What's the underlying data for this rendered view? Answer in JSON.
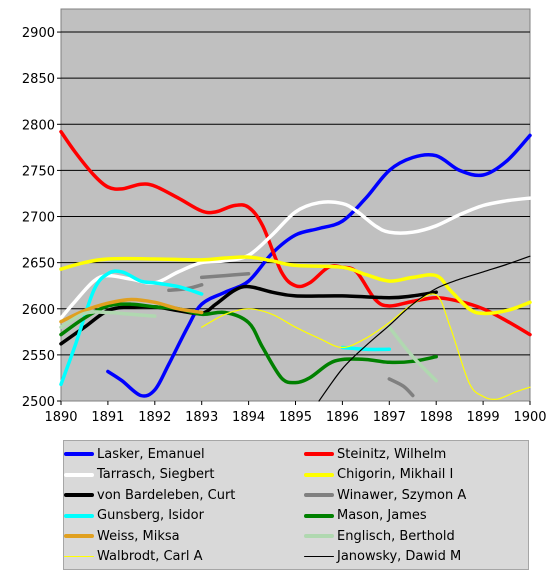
{
  "chart_data": {
    "type": "line",
    "title": "",
    "xlabel": "",
    "ylabel": "",
    "xlim": [
      1890,
      1900
    ],
    "ylim": [
      2500,
      2925
    ],
    "x_ticks": [
      "1890",
      "1891",
      "1892",
      "1893",
      "1894",
      "1895",
      "1896",
      "1897",
      "1898",
      "1899",
      "1900"
    ],
    "y_ticks": [
      "2500",
      "2550",
      "2600",
      "2650",
      "2700",
      "2750",
      "2800",
      "2850",
      "2900"
    ],
    "grid": true,
    "legend_position": "bottom",
    "series": [
      {
        "name": "Lasker, Emanuel",
        "color": "#0000ff",
        "width": 3.5,
        "points": [
          [
            1891,
            2532
          ],
          [
            1891.3,
            2522
          ],
          [
            1891.7,
            2506
          ],
          [
            1892,
            2512
          ],
          [
            1892.3,
            2540
          ],
          [
            1892.7,
            2580
          ],
          [
            1893,
            2605
          ],
          [
            1893.5,
            2618
          ],
          [
            1894,
            2630
          ],
          [
            1894.5,
            2660
          ],
          [
            1895,
            2680
          ],
          [
            1895.5,
            2687
          ],
          [
            1896,
            2695
          ],
          [
            1896.5,
            2720
          ],
          [
            1897,
            2750
          ],
          [
            1897.5,
            2764
          ],
          [
            1898,
            2766
          ],
          [
            1898.5,
            2750
          ],
          [
            1899,
            2745
          ],
          [
            1899.5,
            2760
          ],
          [
            1900,
            2788
          ]
        ]
      },
      {
        "name": "Steinitz, Wilhelm",
        "color": "#ff0000",
        "width": 3.5,
        "points": [
          [
            1890,
            2792
          ],
          [
            1890.3,
            2770
          ],
          [
            1890.7,
            2745
          ],
          [
            1891,
            2732
          ],
          [
            1891.3,
            2730
          ],
          [
            1891.7,
            2735
          ],
          [
            1892,
            2733
          ],
          [
            1892.5,
            2720
          ],
          [
            1893,
            2706
          ],
          [
            1893.3,
            2705
          ],
          [
            1893.7,
            2712
          ],
          [
            1894,
            2710
          ],
          [
            1894.3,
            2690
          ],
          [
            1894.7,
            2640
          ],
          [
            1895,
            2625
          ],
          [
            1895.3,
            2628
          ],
          [
            1895.7,
            2645
          ],
          [
            1896,
            2645
          ],
          [
            1896.3,
            2640
          ],
          [
            1896.7,
            2610
          ],
          [
            1897,
            2603
          ],
          [
            1897.5,
            2608
          ],
          [
            1898,
            2612
          ],
          [
            1898.5,
            2608
          ],
          [
            1899,
            2600
          ],
          [
            1899.5,
            2587
          ],
          [
            1900,
            2572
          ]
        ]
      },
      {
        "name": "Tarrasch, Siegbert",
        "color": "#ffffff",
        "width": 3.5,
        "points": [
          [
            1890,
            2590
          ],
          [
            1890.3,
            2608
          ],
          [
            1890.7,
            2630
          ],
          [
            1891,
            2636
          ],
          [
            1891.5,
            2632
          ],
          [
            1892,
            2628
          ],
          [
            1892.5,
            2640
          ],
          [
            1893,
            2650
          ],
          [
            1893.5,
            2652
          ],
          [
            1894,
            2658
          ],
          [
            1894.5,
            2680
          ],
          [
            1895,
            2705
          ],
          [
            1895.5,
            2715
          ],
          [
            1896,
            2714
          ],
          [
            1896.3,
            2706
          ],
          [
            1896.7,
            2690
          ],
          [
            1897,
            2683
          ],
          [
            1897.5,
            2683
          ],
          [
            1898,
            2690
          ],
          [
            1898.5,
            2702
          ],
          [
            1899,
            2712
          ],
          [
            1899.5,
            2717
          ],
          [
            1900,
            2720
          ]
        ]
      },
      {
        "name": "Chigorin, Mikhail I",
        "color": "#ffff00",
        "width": 3.5,
        "points": [
          [
            1890,
            2643
          ],
          [
            1890.5,
            2650
          ],
          [
            1891,
            2654
          ],
          [
            1892,
            2654
          ],
          [
            1893,
            2653
          ],
          [
            1893.5,
            2655
          ],
          [
            1894,
            2656
          ],
          [
            1894.5,
            2652
          ],
          [
            1895,
            2647
          ],
          [
            1896,
            2645
          ],
          [
            1896.5,
            2637
          ],
          [
            1897,
            2630
          ],
          [
            1897.5,
            2634
          ],
          [
            1898,
            2636
          ],
          [
            1898.3,
            2620
          ],
          [
            1898.7,
            2600
          ],
          [
            1899,
            2595
          ],
          [
            1899.5,
            2598
          ],
          [
            1900,
            2607
          ]
        ]
      },
      {
        "name": "von Bardeleben, Curt",
        "color": "#000000",
        "width": 3.5,
        "points": [
          [
            1890,
            2562
          ],
          [
            1890.5,
            2580
          ],
          [
            1891,
            2598
          ],
          [
            1891.5,
            2602
          ],
          [
            1892,
            2602
          ],
          [
            1892.5,
            2598
          ],
          [
            1893,
            2595
          ],
          [
            1893.3,
            2605
          ],
          [
            1893.7,
            2620
          ],
          [
            1894,
            2624
          ],
          [
            1894.5,
            2618
          ],
          [
            1895,
            2614
          ],
          [
            1896,
            2614
          ],
          [
            1897,
            2612
          ],
          [
            1897.5,
            2614
          ],
          [
            1898,
            2618
          ]
        ]
      },
      {
        "name": "Winawer, Szymon A",
        "color": "#808080",
        "width": 3.5,
        "segments": [
          [
            [
              1892.3,
              2620
            ],
            [
              1892.7,
              2622
            ],
            [
              1893,
              2626
            ]
          ],
          [
            [
              1893,
              2634
            ],
            [
              1893.5,
              2636
            ],
            [
              1894,
              2638
            ]
          ],
          [
            [
              1897,
              2524
            ],
            [
              1897.3,
              2516
            ],
            [
              1897.5,
              2506
            ]
          ]
        ]
      },
      {
        "name": "Gunsberg, Isidor",
        "color": "#00ffff",
        "width": 3.5,
        "segments": [
          [
            [
              1890,
              2518
            ],
            [
              1890.3,
              2560
            ],
            [
              1890.7,
              2620
            ],
            [
              1891,
              2638
            ],
            [
              1891.3,
              2640
            ],
            [
              1891.7,
              2630
            ],
            [
              1892,
              2628
            ],
            [
              1892.5,
              2624
            ],
            [
              1893,
              2616
            ]
          ],
          [
            [
              1896,
              2558
            ],
            [
              1896.5,
              2556
            ],
            [
              1897,
              2556
            ]
          ]
        ]
      },
      {
        "name": "Mason, James",
        "color": "#008000",
        "width": 3.5,
        "points": [
          [
            1890,
            2572
          ],
          [
            1890.5,
            2590
          ],
          [
            1891,
            2603
          ],
          [
            1891.5,
            2605
          ],
          [
            1892,
            2602
          ],
          [
            1892.5,
            2600
          ],
          [
            1893,
            2594
          ],
          [
            1893.5,
            2596
          ],
          [
            1894,
            2585
          ],
          [
            1894.3,
            2558
          ],
          [
            1894.7,
            2525
          ],
          [
            1895,
            2520
          ],
          [
            1895.3,
            2525
          ],
          [
            1895.7,
            2540
          ],
          [
            1896,
            2545
          ],
          [
            1896.5,
            2545
          ],
          [
            1897,
            2542
          ],
          [
            1897.5,
            2543
          ],
          [
            1898,
            2548
          ]
        ]
      },
      {
        "name": "Weiss, Miksa",
        "color": "#e0a020",
        "width": 3.5,
        "points": [
          [
            1890,
            2586
          ],
          [
            1890.5,
            2598
          ],
          [
            1891,
            2606
          ],
          [
            1891.5,
            2610
          ],
          [
            1892,
            2607
          ],
          [
            1892.5,
            2600
          ],
          [
            1893,
            2596
          ]
        ]
      },
      {
        "name": "Englisch, Berthold",
        "color": "#b0d8b0",
        "width": 3.5,
        "segments": [
          [
            [
              1890,
              2580
            ],
            [
              1890.5,
              2595
            ],
            [
              1891,
              2596
            ],
            [
              1891.5,
              2594
            ],
            [
              1892,
              2592
            ]
          ],
          [
            [
              1897,
              2580
            ],
            [
              1897.5,
              2548
            ],
            [
              1898,
              2522
            ]
          ]
        ]
      },
      {
        "name": "Walbrodt, Carl A",
        "color": "#ffff00",
        "width": 1.2,
        "points": [
          [
            1893,
            2580
          ],
          [
            1893.5,
            2594
          ],
          [
            1894,
            2600
          ],
          [
            1894.5,
            2594
          ],
          [
            1895,
            2580
          ],
          [
            1895.5,
            2568
          ],
          [
            1896,
            2558
          ],
          [
            1896.5,
            2568
          ],
          [
            1897,
            2585
          ],
          [
            1897.5,
            2605
          ],
          [
            1898,
            2615
          ],
          [
            1898.3,
            2580
          ],
          [
            1898.7,
            2520
          ],
          [
            1899,
            2505
          ],
          [
            1899.3,
            2502
          ],
          [
            1899.7,
            2510
          ],
          [
            1900,
            2515
          ]
        ]
      },
      {
        "name": "Janowsky, Dawid M",
        "color": "#000000",
        "width": 1.2,
        "points": [
          [
            1895.5,
            2500
          ],
          [
            1896,
            2535
          ],
          [
            1896.5,
            2560
          ],
          [
            1897,
            2582
          ],
          [
            1897.5,
            2605
          ],
          [
            1898,
            2622
          ],
          [
            1898.5,
            2632
          ],
          [
            1899,
            2640
          ],
          [
            1899.5,
            2648
          ],
          [
            1900,
            2657
          ]
        ]
      }
    ]
  }
}
